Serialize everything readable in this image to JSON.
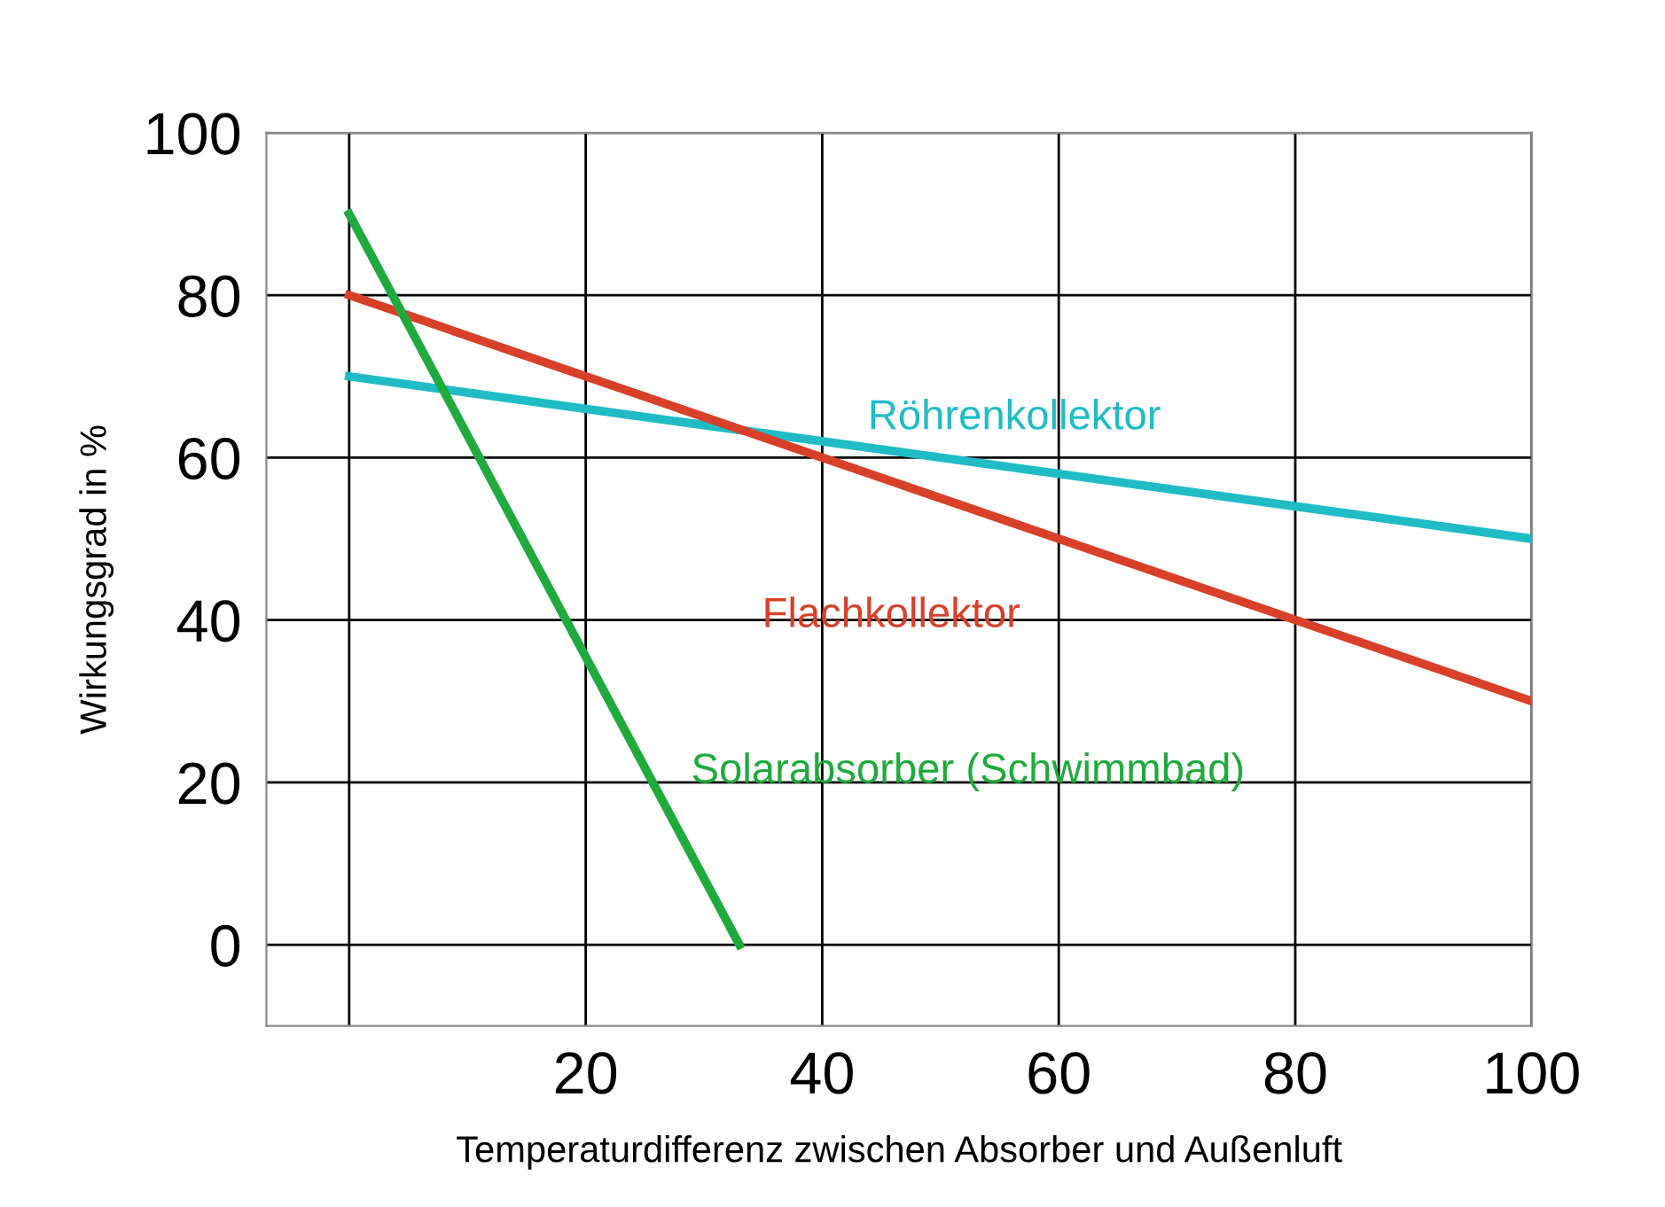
{
  "chart_data": {
    "type": "line",
    "xlabel": "Temperaturdifferenz zwischen Absorber und Außenluft",
    "ylabel": "Wirkungsgrad in %",
    "series": [
      {
        "name": "Röhrenkollektor",
        "color": "#1fbcc6",
        "x": [
          0,
          100
        ],
        "values": [
          70,
          50
        ]
      },
      {
        "name": "Flachkollektor",
        "color": "#d8402a",
        "x": [
          0,
          100
        ],
        "values": [
          80,
          30
        ]
      },
      {
        "name": "Solarabsorber (Schwimmbad)",
        "color": "#1faa3c",
        "x": [
          0,
          33
        ],
        "values": [
          90,
          0
        ]
      }
    ],
    "xlim": [
      -7,
      100
    ],
    "ylim": [
      -10,
      100
    ],
    "xticks": [
      {
        "value": 0,
        "label": null
      },
      20,
      40,
      60,
      80,
      100
    ],
    "yticks": [
      0,
      20,
      40,
      60,
      80,
      100
    ],
    "grid": true,
    "legend": false,
    "marker": "none",
    "line_style": "solid"
  }
}
